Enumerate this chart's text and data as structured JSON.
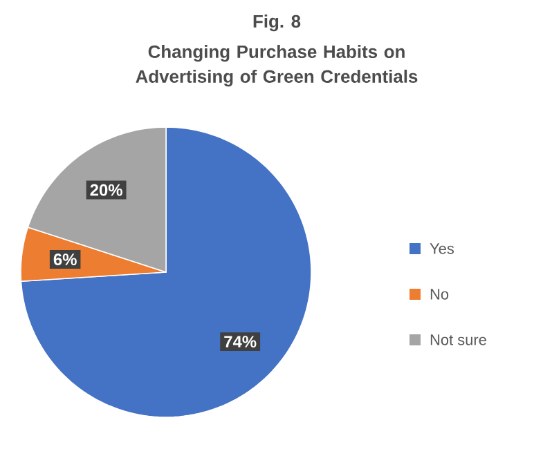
{
  "chart_data": {
    "type": "pie",
    "title": "Fig. 8",
    "subtitle": "Changing Purchase Habits on Advertising of Green Credentials",
    "categories": [
      "Yes",
      "No",
      "Not sure"
    ],
    "values": [
      74,
      6,
      20
    ],
    "colors": [
      "#4472c4",
      "#ed7d31",
      "#a5a5a5"
    ],
    "value_labels": [
      "74%",
      "6%",
      "20%"
    ],
    "legend": "right"
  }
}
